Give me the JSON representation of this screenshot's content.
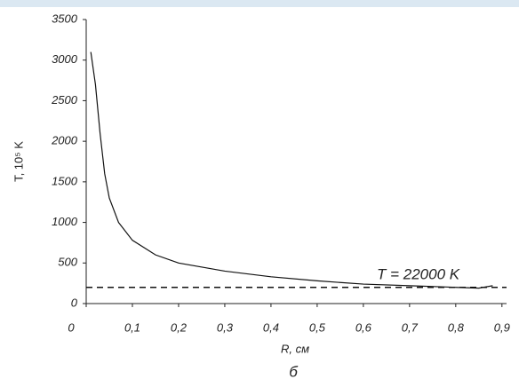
{
  "chart_data": {
    "type": "line",
    "x_label": "R, см",
    "y_label": "T, 10⁵ K",
    "annotation": "T = 22000 K",
    "caption": "б",
    "x": [
      0.01,
      0.02,
      0.03,
      0.04,
      0.05,
      0.07,
      0.1,
      0.15,
      0.2,
      0.3,
      0.4,
      0.5,
      0.6,
      0.7,
      0.8,
      0.85,
      0.88
    ],
    "series": [
      {
        "color": "#111111",
        "values": [
          3100,
          2700,
          2100,
          1600,
          1300,
          1000,
          780,
          600,
          500,
          400,
          330,
          280,
          240,
          220,
          200,
          190,
          220
        ]
      }
    ],
    "hline": 200,
    "xlim": [
      0,
      0.91
    ],
    "xticks": [
      0,
      {
        "value": 0.1,
        "label": "0,1"
      },
      {
        "value": 0.2,
        "label": "0,2"
      },
      {
        "value": 0.3,
        "label": "0,3"
      },
      {
        "value": 0.4,
        "label": "0,4"
      },
      {
        "value": 0.5,
        "label": "0,5"
      },
      {
        "value": 0.6,
        "label": "0,6"
      },
      {
        "value": 0.7,
        "label": "0,7"
      },
      {
        "value": 0.8,
        "label": "0,8"
      },
      {
        "value": 0.9,
        "label": "0,9"
      }
    ],
    "ylim": [
      0,
      3500
    ],
    "yticks": [
      0,
      500,
      1000,
      1500,
      2000,
      2500,
      3000,
      3500
    ]
  }
}
